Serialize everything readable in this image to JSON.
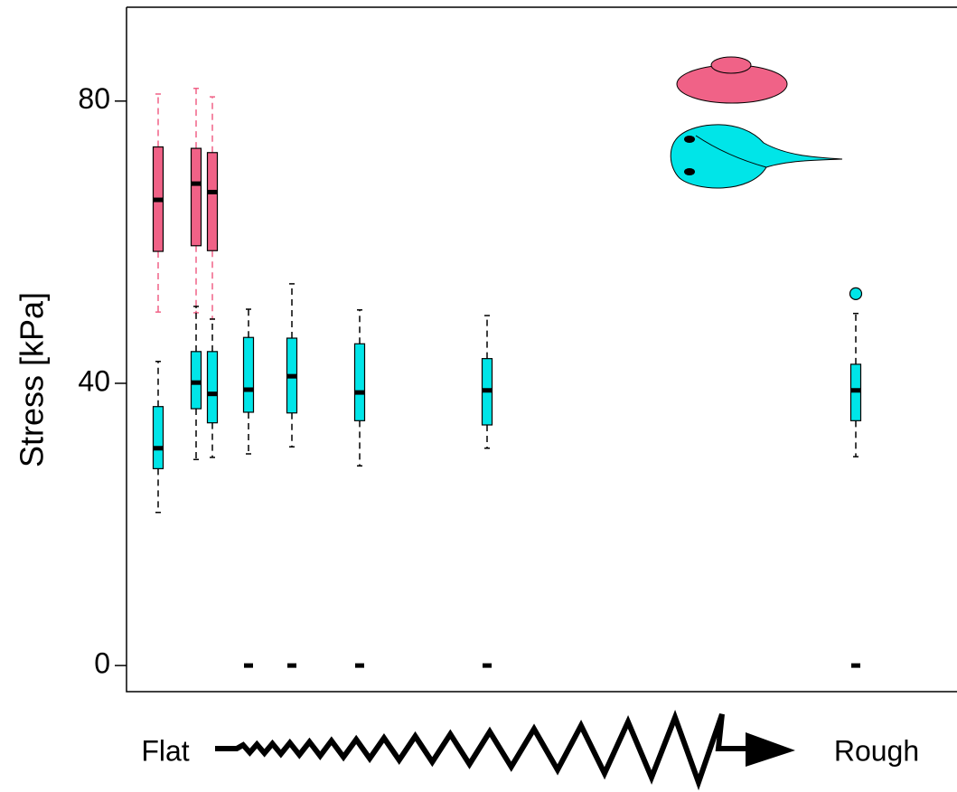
{
  "chart_data": {
    "type": "box",
    "y_label": "Stress [kPa]",
    "x_left_label": "Flat",
    "x_right_label": "Rough",
    "categories": [
      null,
      null,
      null,
      null,
      null,
      null,
      null,
      null
    ],
    "ylim": [
      -3.7,
      93.3
    ],
    "yticks": [
      0,
      40,
      80
    ],
    "series": [
      {
        "color": "#f06287",
        "whisker_color": "#f06287",
        "boxes": [
          {
            "min": 50.1,
            "q1": 58.7,
            "median": 66.0,
            "q3": 73.5,
            "max": 81.0,
            "outliers": []
          },
          {
            "min": 50.0,
            "q1": 59.5,
            "median": 68.3,
            "q3": 73.3,
            "max": 81.8,
            "outliers": []
          },
          {
            "min": 49.1,
            "q1": 58.8,
            "median": 67.1,
            "q3": 72.7,
            "max": 80.6,
            "outliers": []
          },
          null,
          null,
          null,
          null,
          null
        ]
      },
      {
        "color": "#00e5e8",
        "whisker_color": "#000000",
        "boxes": [
          {
            "min": 21.7,
            "q1": 27.9,
            "median": 30.8,
            "q3": 36.7,
            "max": 43.1,
            "outliers": []
          },
          {
            "min": 29.2,
            "q1": 36.4,
            "median": 40.1,
            "q3": 44.5,
            "max": 50.9,
            "outliers": []
          },
          {
            "min": 29.5,
            "q1": 34.4,
            "median": 38.5,
            "q3": 44.5,
            "max": 49.1,
            "outliers": []
          },
          {
            "min": 30.0,
            "q1": 35.9,
            "median": 39.1,
            "q3": 46.5,
            "max": 50.5,
            "outliers": [
              0
            ]
          },
          {
            "min": 31.0,
            "q1": 35.8,
            "median": 41.0,
            "q3": 46.4,
            "max": 54.1,
            "outliers": [
              0
            ]
          },
          {
            "min": 28.3,
            "q1": 34.7,
            "median": 38.7,
            "q3": 45.6,
            "max": 50.4,
            "outliers": [
              0
            ]
          },
          {
            "min": 30.8,
            "q1": 34.1,
            "median": 39.0,
            "q3": 43.5,
            "max": 49.6,
            "outliers": [
              0
            ]
          },
          {
            "min": 29.6,
            "q1": 34.7,
            "median": 39.0,
            "q3": 42.7,
            "max": 49.9,
            "outliers": [
              52.7,
              0
            ]
          }
        ]
      }
    ]
  }
}
